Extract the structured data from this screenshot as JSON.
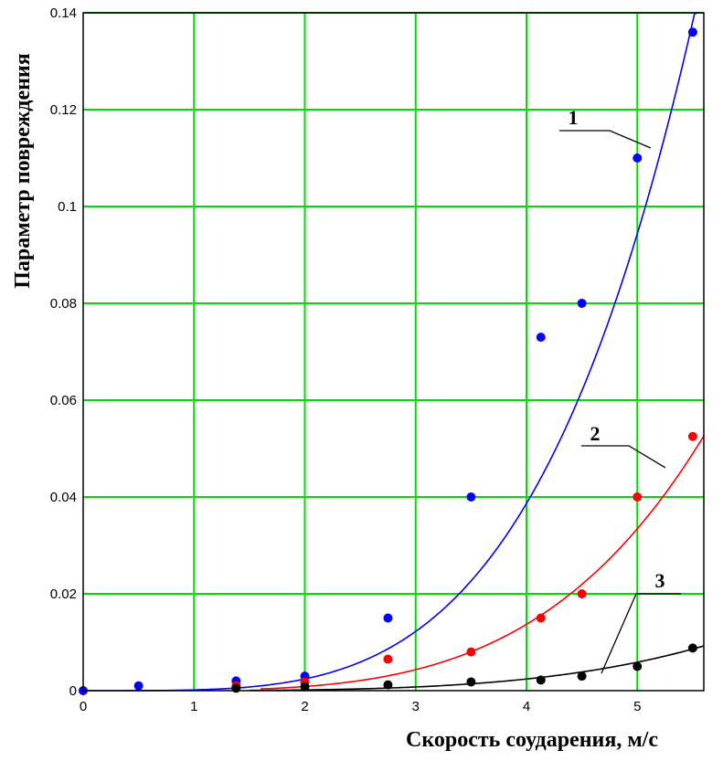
{
  "chart_data": {
    "type": "scatter",
    "title": "",
    "xlabel": "Скорость соударения, м/с",
    "ylabel": "Параметр повреждения",
    "xlim": [
      0,
      5.6
    ],
    "ylim": [
      0,
      0.14
    ],
    "x_ticks": [
      "0",
      "1",
      "2",
      "3",
      "4",
      "5"
    ],
    "y_ticks": [
      "0",
      "0.02",
      "0.04",
      "0.06",
      "0.08",
      "0.1",
      "0.12",
      "0.14"
    ],
    "grid": true,
    "colors": {
      "grid": "#00dd00",
      "frame": "#000000"
    },
    "series": [
      {
        "label": "1",
        "color": "#0000ff",
        "points": [
          [
            0,
            0
          ],
          [
            0.5,
            0.001
          ],
          [
            1.38,
            0.002
          ],
          [
            2,
            0.003
          ],
          [
            2.75,
            0.015
          ],
          [
            3.5,
            0.04
          ],
          [
            4.13,
            0.073
          ],
          [
            4.5,
            0.08
          ],
          [
            5,
            0.11
          ],
          [
            5.5,
            0.136
          ]
        ],
        "fit": {
          "k": 0.000151,
          "p": 4
        }
      },
      {
        "label": "2",
        "color": "#ff0000",
        "points": [
          [
            1.38,
            0.001
          ],
          [
            2,
            0.0018
          ],
          [
            2.75,
            0.0065
          ],
          [
            3.5,
            0.008
          ],
          [
            4.13,
            0.015
          ],
          [
            4.5,
            0.02
          ],
          [
            5,
            0.04
          ],
          [
            5.5,
            0.0525
          ]
        ],
        "fit": {
          "k": 5.35e-05,
          "p": 4,
          "x0": 1.6
        }
      },
      {
        "label": "3",
        "color": "#000000",
        "points": [
          [
            1.38,
            0.0005
          ],
          [
            2,
            0.0008
          ],
          [
            2.75,
            0.0012
          ],
          [
            3.5,
            0.0018
          ],
          [
            4.13,
            0.0022
          ],
          [
            4.5,
            0.003
          ],
          [
            5,
            0.005
          ],
          [
            5.5,
            0.0088
          ]
        ],
        "fit": {
          "k": 9.4e-06,
          "p": 4,
          "x0": 1.5
        }
      }
    ]
  }
}
